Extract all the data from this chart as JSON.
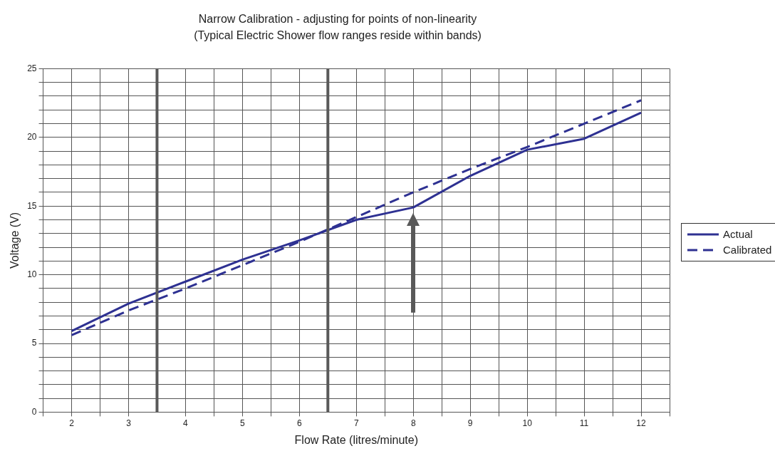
{
  "chart_data": {
    "type": "line",
    "title": "Narrow Calibration - adjusting for points of non-linearity",
    "subtitle": "(Typical Electric Shower flow ranges reside within bands)",
    "xlabel": "Flow Rate (litres/minute)",
    "ylabel": "Voltage (V)",
    "x": [
      2,
      3,
      4,
      5,
      6,
      7,
      8,
      9,
      10,
      11,
      12
    ],
    "series": [
      {
        "name": "Actual",
        "color": "#2e3192",
        "line_style": "solid",
        "values": [
          5.9,
          7.9,
          9.5,
          11.1,
          12.5,
          14.0,
          14.9,
          17.2,
          19.1,
          19.9,
          21.8
        ]
      },
      {
        "name": "Calibrated",
        "color": "#2e3192",
        "line_style": "dashed",
        "values": [
          5.6,
          7.4,
          9.0,
          10.7,
          12.4,
          14.2,
          16.0,
          17.7,
          19.3,
          21.0,
          22.7
        ]
      }
    ],
    "xlim": [
      1.5,
      12.5
    ],
    "xticks": [
      {
        "value": 1.5,
        "label": null
      },
      2,
      {
        "value": 2.5,
        "label": null
      },
      3,
      4,
      {
        "value": 4.5,
        "label": null
      },
      5,
      {
        "value": 5.5,
        "label": null
      },
      6,
      7,
      {
        "value": 7.5,
        "label": null
      },
      8,
      {
        "value": 8.5,
        "label": null
      },
      9,
      {
        "value": 9.5,
        "label": null
      },
      10,
      {
        "value": 10.5,
        "label": null
      },
      11,
      {
        "value": 11.5,
        "label": null
      },
      12,
      {
        "value": 12.5,
        "label": null
      }
    ],
    "ylim": [
      0,
      25
    ],
    "yticks": [
      0,
      {
        "value": 1,
        "label": null
      },
      {
        "value": 2,
        "label": null
      },
      {
        "value": 3,
        "label": null
      },
      {
        "value": 4,
        "label": null
      },
      5,
      {
        "value": 6,
        "label": null
      },
      {
        "value": 7,
        "label": null
      },
      {
        "value": 8,
        "label": null
      },
      {
        "value": 9,
        "label": null
      },
      10,
      {
        "value": 11,
        "label": null
      },
      {
        "value": 12,
        "label": null
      },
      {
        "value": 13,
        "label": null
      },
      {
        "value": 14,
        "label": null
      },
      15,
      {
        "value": 16,
        "label": null
      },
      {
        "value": 17,
        "label": null
      },
      {
        "value": 18,
        "label": null
      },
      {
        "value": 19,
        "label": null
      },
      20,
      {
        "value": 21,
        "label": null
      },
      {
        "value": 22,
        "label": null
      },
      {
        "value": 23,
        "label": null
      },
      {
        "value": 24,
        "label": null
      },
      25
    ],
    "ref_lines": [
      {
        "axis": "x",
        "value": 3.5,
        "color": "#595959"
      },
      {
        "axis": "x",
        "value": 6.5,
        "color": "#595959"
      }
    ],
    "grid": true,
    "legend": "right",
    "marker": "none"
  }
}
